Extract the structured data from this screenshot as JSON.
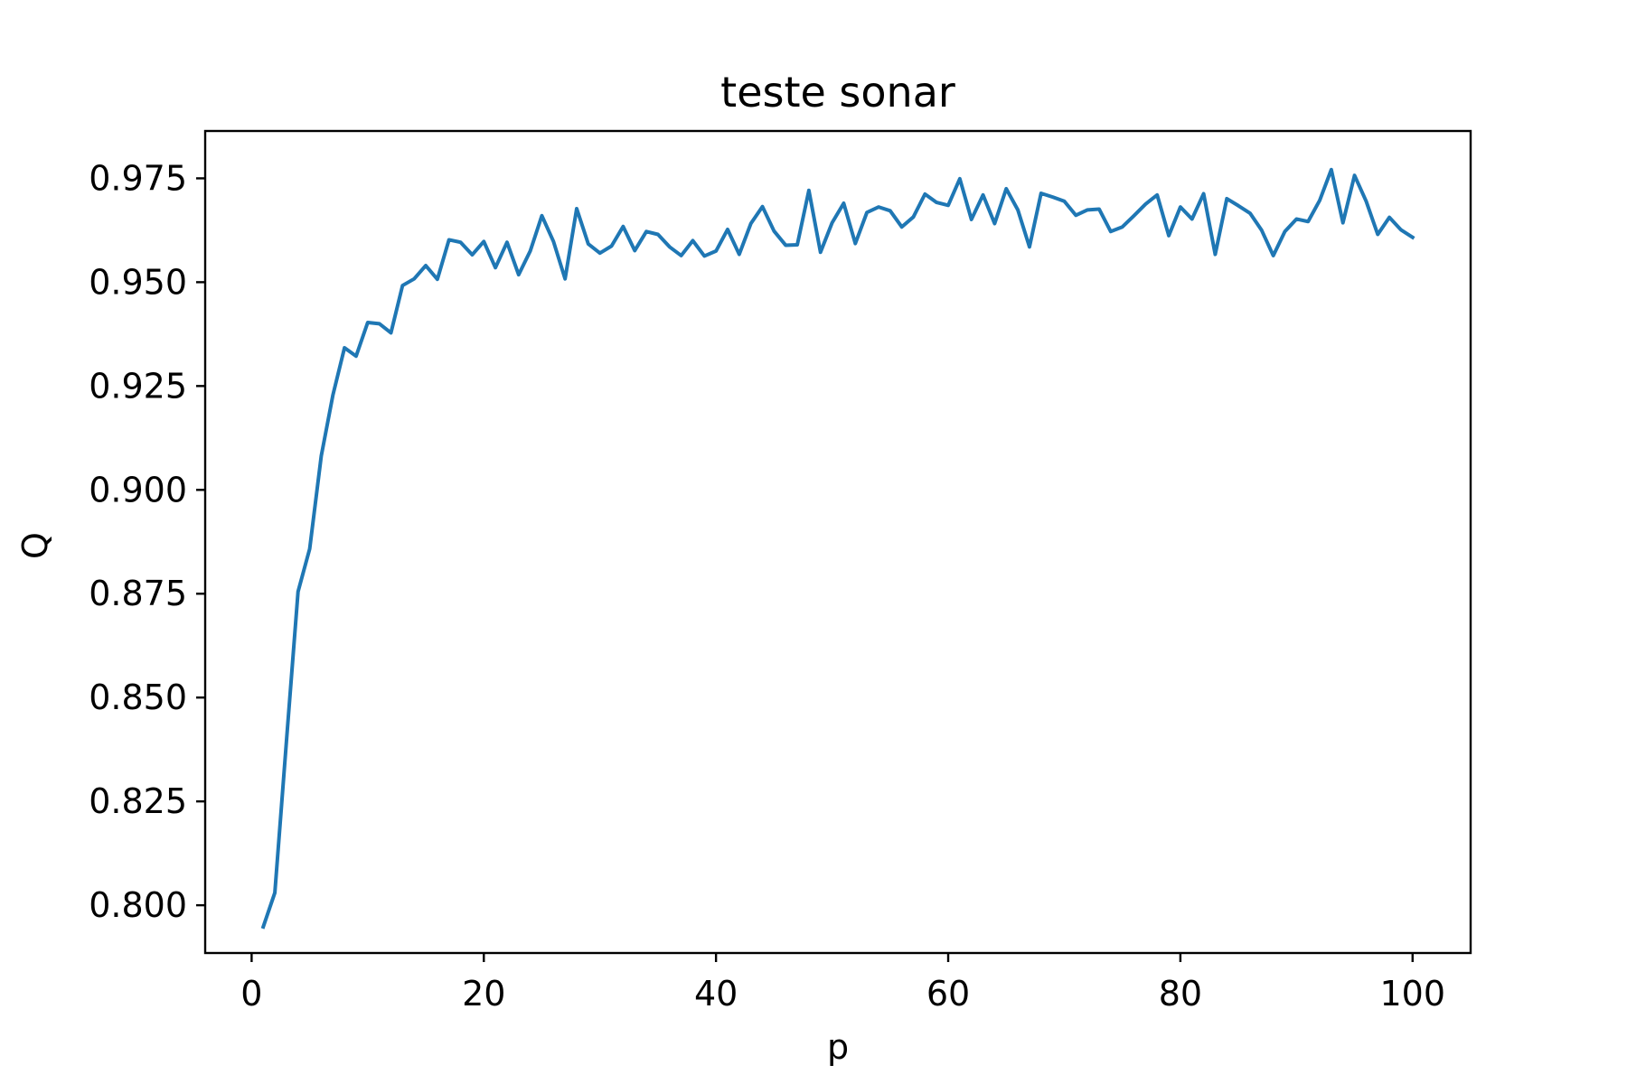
{
  "chart_data": {
    "type": "line",
    "title": "teste sonar",
    "xlabel": "p",
    "ylabel": "Q",
    "xlim": [
      -4,
      105
    ],
    "ylim": [
      0.7885,
      0.9864
    ],
    "xticks": [
      0,
      20,
      40,
      60,
      80,
      100
    ],
    "xtick_labels": [
      "0",
      "20",
      "40",
      "60",
      "80",
      "100"
    ],
    "yticks": [
      0.8,
      0.825,
      0.85,
      0.875,
      0.9,
      0.925,
      0.95,
      0.975
    ],
    "ytick_labels": [
      "0.800",
      "0.825",
      "0.850",
      "0.875",
      "0.900",
      "0.925",
      "0.950",
      "0.975"
    ],
    "grid": false,
    "line_color": "#1f77b4",
    "series": [
      {
        "x": [
          1,
          2,
          3,
          4,
          5,
          6,
          7,
          8,
          9,
          10,
          11,
          12,
          13,
          14,
          15,
          16,
          17,
          18,
          19,
          20,
          21,
          22,
          23,
          24,
          25,
          26,
          27,
          28,
          29,
          30,
          31,
          32,
          33,
          34,
          35,
          36,
          37,
          38,
          39,
          40,
          41,
          42,
          43,
          44,
          45,
          46,
          47,
          48,
          49,
          50,
          51,
          52,
          53,
          54,
          55,
          56,
          57,
          58,
          59,
          60,
          61,
          62,
          63,
          64,
          65,
          66,
          67,
          68,
          69,
          70,
          71,
          72,
          73,
          74,
          75,
          76,
          77,
          78,
          79,
          80,
          81,
          82,
          83,
          84,
          85,
          86,
          87,
          88,
          89,
          90,
          91,
          92,
          93,
          94,
          95,
          96,
          97,
          98,
          99,
          100
        ],
        "values": [
          0.7948,
          0.803,
          0.8395,
          0.8755,
          0.8858,
          0.9082,
          0.9228,
          0.9342,
          0.9322,
          0.9403,
          0.94,
          0.9378,
          0.9492,
          0.9508,
          0.954,
          0.9507,
          0.9602,
          0.9596,
          0.9566,
          0.9598,
          0.9535,
          0.9596,
          0.9518,
          0.9575,
          0.966,
          0.9598,
          0.9508,
          0.9677,
          0.9592,
          0.957,
          0.9587,
          0.9634,
          0.9576,
          0.9622,
          0.9615,
          0.9585,
          0.9564,
          0.96,
          0.9563,
          0.9575,
          0.9627,
          0.9567,
          0.9641,
          0.9682,
          0.9623,
          0.9589,
          0.959,
          0.9721,
          0.9572,
          0.9643,
          0.969,
          0.9593,
          0.9668,
          0.9681,
          0.9672,
          0.9633,
          0.9657,
          0.9712,
          0.9692,
          0.9685,
          0.9749,
          0.9651,
          0.971,
          0.9641,
          0.9725,
          0.9674,
          0.9585,
          0.9714,
          0.9705,
          0.9695,
          0.9661,
          0.9674,
          0.9676,
          0.9622,
          0.9633,
          0.966,
          0.9688,
          0.971,
          0.9612,
          0.9681,
          0.9652,
          0.9713,
          0.9567,
          0.9701,
          0.9684,
          0.9666,
          0.9625,
          0.9564,
          0.9622,
          0.9652,
          0.9646,
          0.9697,
          0.9771,
          0.9643,
          0.9757,
          0.9695,
          0.9615,
          0.9656,
          0.9626,
          0.9608
        ]
      }
    ]
  }
}
